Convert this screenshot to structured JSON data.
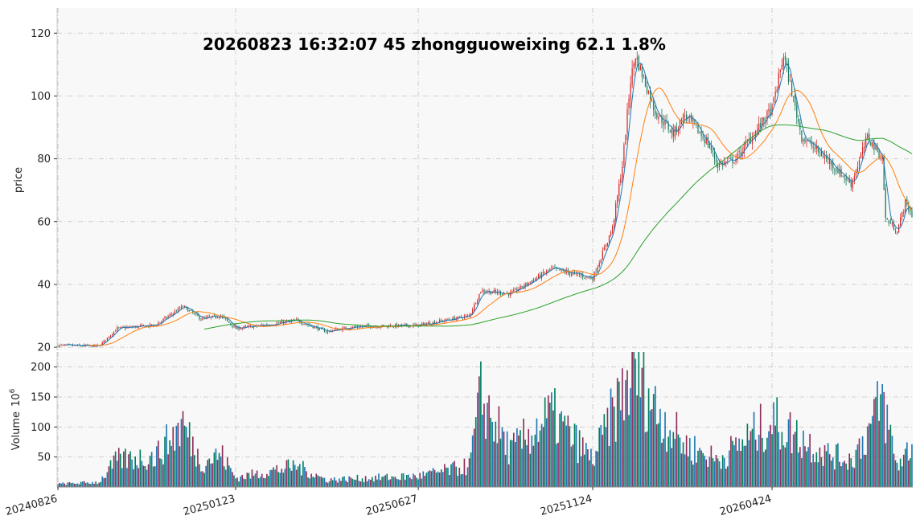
{
  "chart_data": {
    "type": "candlestick",
    "title": "20260823 16:32:07  45  zhongguoweixing  62.1 1.8%",
    "price_panel": {
      "ylabel": "price",
      "ylim": [
        19,
        128
      ],
      "yticks": [
        "20",
        "40",
        "60",
        "80",
        "100",
        "120"
      ],
      "grid": true
    },
    "volume_panel": {
      "ylabel": "Volume",
      "ylabel_unit": "10^6",
      "ylim": [
        0,
        225
      ],
      "yticks": [
        "50",
        "100",
        "150",
        "200"
      ],
      "grid": true
    },
    "x_tick_labels": [
      "20240826",
      "20250123",
      "20250627",
      "20251124",
      "20260424"
    ],
    "colors": {
      "up": "#d62728",
      "down": "#1a7a5a",
      "ma_short": "#1f77b4",
      "ma_mid": "#ff7f0e",
      "ma_long": "#2ca02c",
      "vol_a": "#1f77b4",
      "vol_b": "#8c2d5a",
      "vol_c": "#007f5f"
    },
    "close_keypoints": [
      {
        "date": "20240826",
        "price": 20.6
      },
      {
        "date": "20240930",
        "price": 20.4
      },
      {
        "date": "20241015",
        "price": 26
      },
      {
        "date": "20241115",
        "price": 27
      },
      {
        "date": "20241210",
        "price": 33
      },
      {
        "date": "20241225",
        "price": 29
      },
      {
        "date": "20250110",
        "price": 30
      },
      {
        "date": "20250123",
        "price": 26
      },
      {
        "date": "20250215",
        "price": 27
      },
      {
        "date": "20250315",
        "price": 28.5
      },
      {
        "date": "20250410",
        "price": 25
      },
      {
        "date": "20250505",
        "price": 26.5
      },
      {
        "date": "20250627",
        "price": 27
      },
      {
        "date": "20250810",
        "price": 30
      },
      {
        "date": "20250820",
        "price": 38
      },
      {
        "date": "20250915",
        "price": 37
      },
      {
        "date": "20251020",
        "price": 45
      },
      {
        "date": "20251124",
        "price": 42
      },
      {
        "date": "20251210",
        "price": 58
      },
      {
        "date": "20251218",
        "price": 78
      },
      {
        "date": "20251225",
        "price": 105
      },
      {
        "date": "20251230",
        "price": 113
      },
      {
        "date": "20260115",
        "price": 95
      },
      {
        "date": "20260130",
        "price": 88
      },
      {
        "date": "20260210",
        "price": 94
      },
      {
        "date": "20260228",
        "price": 85
      },
      {
        "date": "20260310",
        "price": 78
      },
      {
        "date": "20260325",
        "price": 80
      },
      {
        "date": "20260424",
        "price": 96
      },
      {
        "date": "20260505",
        "price": 113
      },
      {
        "date": "20260520",
        "price": 87
      },
      {
        "date": "20260610",
        "price": 80
      },
      {
        "date": "20260701",
        "price": 72
      },
      {
        "date": "20260715",
        "price": 87
      },
      {
        "date": "20260728",
        "price": 80
      },
      {
        "date": "20260730",
        "price": 61
      },
      {
        "date": "20260808",
        "price": 57
      },
      {
        "date": "20260815",
        "price": 66
      },
      {
        "date": "20260823",
        "price": 62.1
      }
    ],
    "volume_keypoints": [
      {
        "date": "20240826",
        "volume": 5
      },
      {
        "date": "20240930",
        "volume": 8
      },
      {
        "date": "20241015",
        "volume": 45
      },
      {
        "date": "20241115",
        "volume": 50
      },
      {
        "date": "20241210",
        "volume": 105
      },
      {
        "date": "20241225",
        "volume": 40
      },
      {
        "date": "20250110",
        "volume": 55
      },
      {
        "date": "20250123",
        "volume": 15
      },
      {
        "date": "20250315",
        "volume": 35
      },
      {
        "date": "20250410",
        "volume": 12
      },
      {
        "date": "20250627",
        "volume": 18
      },
      {
        "date": "20250810",
        "volume": 35
      },
      {
        "date": "20250820",
        "volume": 150
      },
      {
        "date": "20250915",
        "volume": 60
      },
      {
        "date": "20251020",
        "volume": 120
      },
      {
        "date": "20251124",
        "volume": 45
      },
      {
        "date": "20251210",
        "volume": 120
      },
      {
        "date": "20251230",
        "volume": 200
      },
      {
        "date": "20260115",
        "volume": 130
      },
      {
        "date": "20260210",
        "volume": 70
      },
      {
        "date": "20260310",
        "volume": 45
      },
      {
        "date": "20260424",
        "volume": 110
      },
      {
        "date": "20260520",
        "volume": 80
      },
      {
        "date": "20260610",
        "volume": 55
      },
      {
        "date": "20260701",
        "volume": 45
      },
      {
        "date": "20260715",
        "volume": 90
      },
      {
        "date": "20260728",
        "volume": 145
      },
      {
        "date": "20260808",
        "volume": 35
      },
      {
        "date": "20260823",
        "volume": 70
      }
    ]
  }
}
